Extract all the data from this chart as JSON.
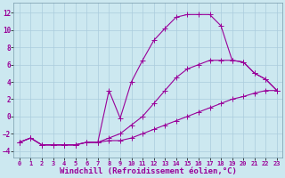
{
  "bg_color": "#cce8f0",
  "grid_color": "#aaccdd",
  "line_color": "#990099",
  "marker": "+",
  "markersize": 4,
  "linewidth": 0.8,
  "xlabel": "Windchill (Refroidissement éolien,°C)",
  "xlabel_fontsize": 6.5,
  "xtick_fontsize": 5,
  "ytick_fontsize": 5.5,
  "xlim": [
    -0.5,
    23.5
  ],
  "ylim": [
    -4.8,
    13.2
  ],
  "yticks": [
    -4,
    -2,
    0,
    2,
    4,
    6,
    8,
    10,
    12
  ],
  "xticks": [
    0,
    1,
    2,
    3,
    4,
    5,
    6,
    7,
    8,
    9,
    10,
    11,
    12,
    13,
    14,
    15,
    16,
    17,
    18,
    19,
    20,
    21,
    22,
    23
  ],
  "series": [
    {
      "x": [
        0,
        1,
        2,
        3,
        4,
        5,
        6,
        7,
        8,
        9,
        10,
        11,
        12,
        13,
        14,
        15,
        16,
        17,
        18,
        19,
        20,
        21,
        22,
        23
      ],
      "y": [
        -3.0,
        -2.5,
        -3.3,
        -3.3,
        -3.3,
        -3.3,
        -3.0,
        -3.0,
        -2.8,
        -2.8,
        -2.5,
        -2.0,
        -1.5,
        -1.0,
        -0.5,
        0.0,
        0.5,
        1.0,
        1.5,
        2.0,
        2.3,
        2.7,
        3.0,
        3.0
      ]
    },
    {
      "x": [
        0,
        1,
        2,
        3,
        4,
        5,
        6,
        7,
        8,
        9,
        10,
        11,
        12,
        13,
        14,
        15,
        16,
        17,
        18,
        19,
        20,
        21,
        22,
        23
      ],
      "y": [
        -3.0,
        -2.5,
        -3.3,
        -3.3,
        -3.3,
        -3.3,
        -3.0,
        -3.0,
        -2.5,
        -2.0,
        -1.0,
        0.0,
        1.5,
        3.0,
        4.5,
        5.5,
        6.0,
        6.5,
        6.5,
        6.5,
        6.3,
        5.0,
        4.3,
        3.0
      ]
    },
    {
      "x": [
        0,
        1,
        2,
        3,
        4,
        5,
        6,
        7,
        8,
        9,
        10,
        11,
        12,
        13,
        14,
        15,
        16,
        17,
        18,
        19,
        20,
        21,
        22,
        23
      ],
      "y": [
        -3.0,
        -2.5,
        -3.3,
        -3.3,
        -3.3,
        -3.3,
        -3.0,
        -3.0,
        3.0,
        -0.2,
        4.0,
        6.5,
        8.8,
        10.2,
        11.5,
        11.8,
        11.8,
        11.8,
        10.5,
        6.5,
        6.3,
        5.0,
        4.3,
        3.0
      ]
    }
  ]
}
